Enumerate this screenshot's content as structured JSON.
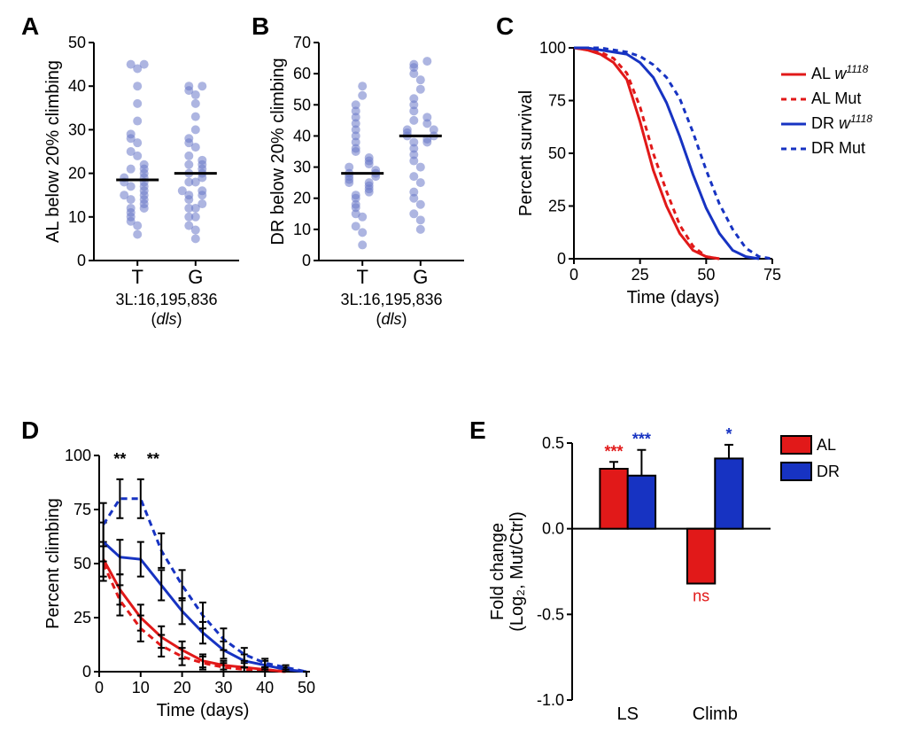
{
  "palette": {
    "dot": "#6a79c9",
    "AL": "#e11919",
    "DR": "#1733c2",
    "black": "#000000",
    "bg": "#ffffff"
  },
  "labels": {
    "A": "A",
    "B": "B",
    "C": "C",
    "D": "D",
    "E": "E"
  },
  "A": {
    "type": "scatter",
    "ylabel": "AL below 20% climbing",
    "ylim": [
      0,
      50
    ],
    "ytick_step": 10,
    "xlabel_line1": "3L:16,195,836",
    "xlabel_line2": "(dls)",
    "categories": [
      "T",
      "G"
    ],
    "medians": [
      18.5,
      20.0
    ],
    "marker_radius": 5,
    "marker_color": "#6a79c9",
    "marker_alpha": 0.55,
    "points": {
      "T": [
        6,
        8,
        9,
        10,
        11,
        12,
        12,
        13,
        14,
        14,
        15,
        15,
        16,
        17,
        17,
        18,
        18,
        19,
        19,
        20,
        21,
        21,
        22,
        24,
        25,
        27,
        28,
        29,
        32,
        36,
        40,
        44,
        45,
        45
      ],
      "G": [
        5,
        7,
        8,
        10,
        10,
        12,
        12,
        13,
        14,
        15,
        15,
        16,
        16,
        18,
        18,
        19,
        20,
        20,
        21,
        22,
        22,
        23,
        24,
        26,
        27,
        28,
        30,
        33,
        36,
        38,
        39,
        40,
        40
      ]
    }
  },
  "B": {
    "type": "scatter",
    "ylabel": "DR below 20% climbing",
    "ylim": [
      0,
      70
    ],
    "ytick_step": 10,
    "xlabel_line1": "3L:16,195,836",
    "xlabel_line2": "(dls)",
    "categories": [
      "T",
      "G"
    ],
    "medians": [
      28,
      40
    ],
    "marker_radius": 5,
    "marker_color": "#6a79c9",
    "marker_alpha": 0.55,
    "points": {
      "T": [
        5,
        9,
        11,
        14,
        15,
        17,
        18,
        20,
        21,
        22,
        23,
        24,
        25,
        25,
        26,
        27,
        27,
        28,
        28,
        29,
        30,
        31,
        32,
        33,
        35,
        36,
        38,
        40,
        42,
        44,
        46,
        48,
        50,
        53,
        56
      ],
      "G": [
        10,
        13,
        15,
        18,
        20,
        22,
        25,
        27,
        30,
        32,
        34,
        36,
        38,
        38,
        39,
        40,
        40,
        41,
        42,
        42,
        44,
        45,
        46,
        48,
        50,
        52,
        55,
        58,
        60,
        62,
        63,
        64
      ]
    }
  },
  "C": {
    "type": "line",
    "ylabel": "Percent survival",
    "xlabel": "Time (days)",
    "ylim": [
      0,
      100
    ],
    "ytick_step": 25,
    "xlim": [
      0,
      75
    ],
    "xtick_step": 25,
    "line_width": 3,
    "colors": {
      "AL": "#e11919",
      "DR": "#1733c2"
    },
    "legend": [
      "AL w^1118",
      "AL Mut",
      "DR w^1118",
      "DR Mut"
    ],
    "series": {
      "AL_w1118": {
        "color": "#e11919",
        "dash": "none",
        "x": [
          0,
          5,
          10,
          15,
          20,
          25,
          30,
          35,
          40,
          45,
          50,
          55
        ],
        "y": [
          100,
          99,
          97,
          93,
          85,
          65,
          42,
          25,
          12,
          4,
          1,
          0
        ]
      },
      "AL_Mut": {
        "color": "#e11919",
        "dash": "6,5",
        "x": [
          0,
          5,
          10,
          15,
          20,
          25,
          30,
          35,
          40,
          45,
          50,
          55
        ],
        "y": [
          100,
          99,
          98,
          95,
          88,
          72,
          50,
          32,
          16,
          6,
          1,
          0
        ]
      },
      "DR_w1118": {
        "color": "#1733c2",
        "dash": "none",
        "x": [
          0,
          5,
          10,
          15,
          20,
          25,
          30,
          35,
          40,
          45,
          50,
          55,
          60,
          65,
          70
        ],
        "y": [
          100,
          100,
          99,
          98,
          97,
          93,
          86,
          74,
          58,
          40,
          24,
          12,
          4,
          1,
          0
        ]
      },
      "DR_Mut": {
        "color": "#1733c2",
        "dash": "6,5",
        "x": [
          0,
          5,
          10,
          15,
          20,
          25,
          30,
          35,
          40,
          45,
          50,
          55,
          60,
          65,
          70,
          75
        ],
        "y": [
          100,
          100,
          100,
          99,
          98,
          96,
          92,
          86,
          76,
          60,
          42,
          26,
          14,
          5,
          1,
          0
        ]
      }
    }
  },
  "D": {
    "type": "line",
    "ylabel": "Percent climbing",
    "xlabel": "Time (days)",
    "ylim": [
      0,
      100
    ],
    "ytick_step": 25,
    "xlim": [
      0,
      50
    ],
    "xtick_step": 10,
    "line_width": 3,
    "colors": {
      "AL": "#e11919",
      "DR": "#1733c2"
    },
    "sig_markers": [
      {
        "x": 5,
        "label": "**"
      },
      {
        "x": 13,
        "label": "**"
      }
    ],
    "series": {
      "AL_w1118": {
        "color": "#e11919",
        "dash": "none",
        "x": [
          1,
          5,
          10,
          15,
          20,
          25,
          30,
          35,
          40,
          45
        ],
        "y": [
          52,
          38,
          25,
          16,
          10,
          5,
          3,
          2,
          1,
          0
        ],
        "err": [
          8,
          7,
          6,
          5,
          4,
          3,
          2,
          2,
          1,
          0
        ]
      },
      "AL_Mut": {
        "color": "#e11919",
        "dash": "7,5",
        "x": [
          1,
          5,
          10,
          15,
          20,
          25,
          30,
          35,
          40,
          45
        ],
        "y": [
          50,
          33,
          20,
          12,
          7,
          4,
          2,
          1,
          1,
          0
        ],
        "err": [
          8,
          7,
          6,
          5,
          4,
          3,
          2,
          1,
          1,
          0
        ]
      },
      "DR_w1118": {
        "color": "#1733c2",
        "dash": "none",
        "x": [
          1,
          5,
          10,
          15,
          20,
          25,
          30,
          35,
          40,
          45,
          50
        ],
        "y": [
          60,
          53,
          52,
          40,
          28,
          18,
          10,
          5,
          3,
          1,
          0
        ],
        "err": [
          9,
          8,
          8,
          7,
          6,
          5,
          4,
          3,
          2,
          1,
          0
        ]
      },
      "DR_Mut": {
        "color": "#1733c2",
        "dash": "7,5",
        "x": [
          1,
          5,
          10,
          15,
          20,
          25,
          30,
          35,
          40,
          45,
          50
        ],
        "y": [
          68,
          80,
          80,
          56,
          40,
          26,
          15,
          8,
          4,
          2,
          0
        ],
        "err": [
          10,
          9,
          9,
          8,
          7,
          6,
          5,
          3,
          2,
          1,
          0
        ]
      }
    }
  },
  "E": {
    "type": "bar",
    "ylabel_line1": "Fold change",
    "ylabel_line2": "(Log₂, Mut/Ctrl)",
    "ylim": [
      -1.0,
      0.5
    ],
    "yticks": [
      -1.0,
      -0.5,
      0.0,
      0.5
    ],
    "groups": [
      "LS",
      "Climb"
    ],
    "series": [
      "AL",
      "DR"
    ],
    "colors": {
      "AL": "#e11919",
      "DR": "#1733c2"
    },
    "bar_width": 0.35,
    "values": {
      "LS": {
        "AL": 0.35,
        "DR": 0.31
      },
      "Climb": {
        "AL": -0.32,
        "DR": 0.41
      }
    },
    "errors": {
      "LS": {
        "AL": 0.04,
        "DR": 0.15
      },
      "Climb": {
        "AL": 0.0,
        "DR": 0.08
      }
    },
    "sig": {
      "LS": {
        "AL": {
          "text": "***",
          "color": "#e11919"
        },
        "DR": {
          "text": "***",
          "color": "#1733c2"
        }
      },
      "Climb": {
        "AL": {
          "text": "ns",
          "color": "#e11919"
        },
        "DR": {
          "text": "*",
          "color": "#1733c2"
        }
      }
    },
    "legend": [
      "AL",
      "DR"
    ]
  }
}
